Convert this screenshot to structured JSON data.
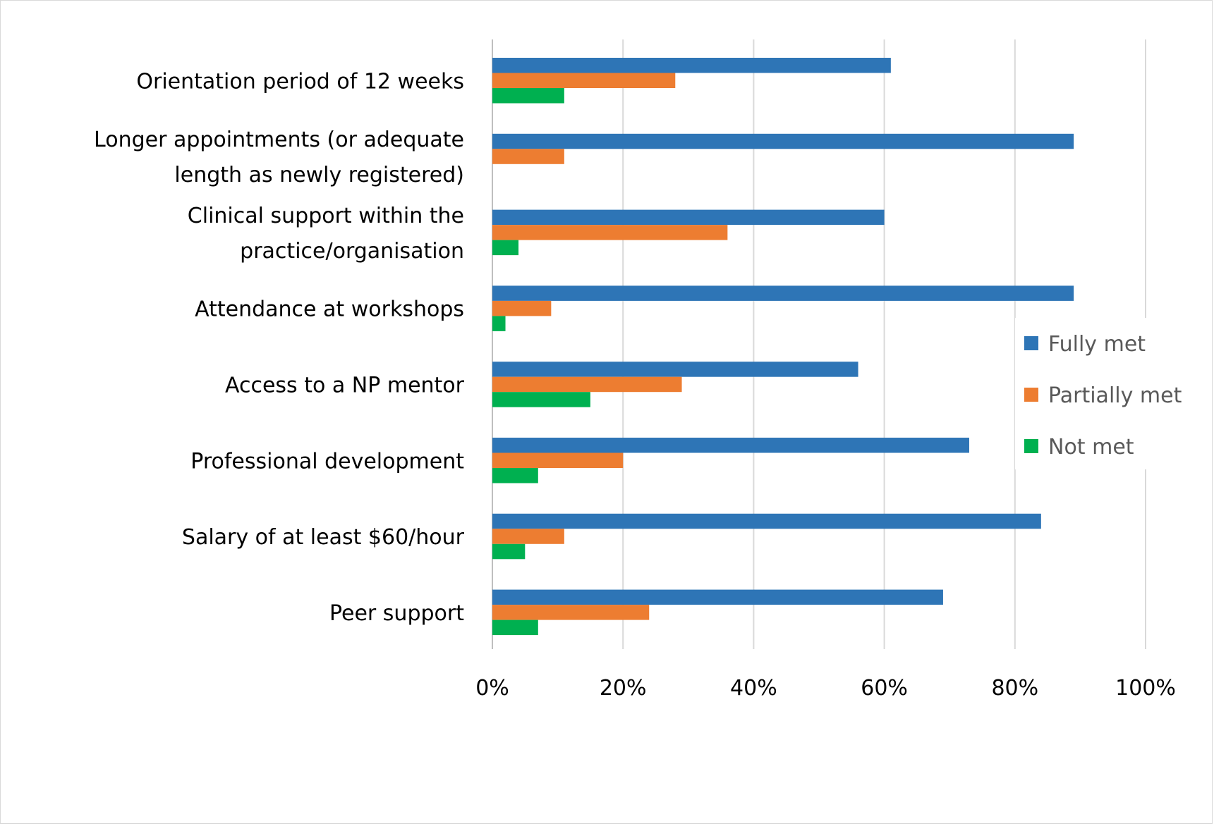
{
  "chart_data": {
    "type": "bar",
    "orientation": "horizontal",
    "categories": [
      [
        "Orientation period of 12 weeks"
      ],
      [
        "Longer appointments (or adequate",
        "length as newly registered)"
      ],
      [
        "Clinical support within the",
        "practice/organisation"
      ],
      [
        "Attendance at workshops"
      ],
      [
        "Access to a NP mentor"
      ],
      [
        "Professional development"
      ],
      [
        "Salary of  at least $60/hour"
      ],
      [
        "Peer support"
      ]
    ],
    "series": [
      {
        "name": "Fully met",
        "color": "#2E75B6",
        "values": [
          61,
          89,
          60,
          89,
          56,
          73,
          84,
          69
        ]
      },
      {
        "name": "Partially met",
        "color": "#ED7D31",
        "values": [
          28,
          11,
          36,
          9,
          29,
          20,
          11,
          24
        ]
      },
      {
        "name": "Not met",
        "color": "#00B050",
        "values": [
          11,
          0,
          4,
          2,
          15,
          7,
          5,
          7
        ]
      }
    ],
    "xlim": [
      0,
      100
    ],
    "xticks": [
      0,
      20,
      40,
      60,
      80,
      100
    ],
    "tick_suffix": "%",
    "grid": true,
    "legend_position": "right"
  }
}
